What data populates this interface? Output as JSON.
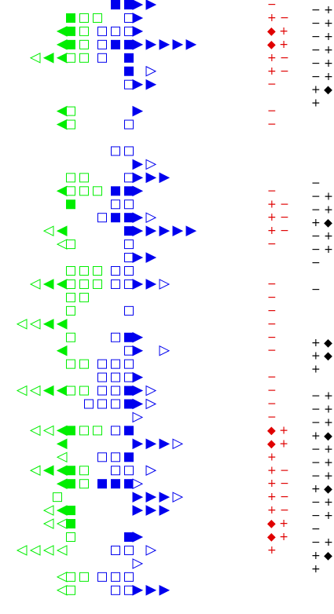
{
  "symbols": [
    ".......BBRR...",
    "....Ggg.bR....",
    "...LGgbbbR....",
    "...LGgbBBRRRRR",
    ".lLLggb.B.....",
    "........B.r...",
    "........bRR...",
    "..............",
    "...Lg....R....",
    "...Lg...b.....",
    "..............",
    ".......bb.....",
    ".........Rr...",
    "....gg..bRRR..",
    "...LgggBBR....",
    "....G..bb.....",
    "......bBBRr...",
    "..lL....BRRRRR",
    "...lg...b.....",
    "........bRR...",
    "....gggbb.....",
    ".lLLgggbbRRr..",
    "....gg........",
    "....g...b.....",
    "llLL..........",
    "....g..bBR....",
    "...L....bR.r..",
    "....ggbbb.....",
    "......bbbR....",
    "llLLggbbBRr...",
    ".....bbbBRr...",
    ".........r....",
    ".llLGggbB.....",
    "...L.....RRRr.",
    "...l..bbB.....",
    ".lLLGg.bb.r...",
    "...LGgBBBr....",
    "...g.....RRRr.",
    "..lLG....RRR..",
    "..llG.........",
    "....g...BR....",
    "llll...bb.r...",
    ".........r....",
    "...lggbbb.....",
    "...lg..bbRRR.."
  ],
  "red_column": [
    "−",
    "+ −",
    "◆ +",
    "◆ +",
    "+ −",
    "+ −",
    "−",
    null,
    "−",
    "−",
    null,
    null,
    null,
    null,
    "−",
    "+ −",
    "+ −",
    "+ −",
    "−",
    null,
    null,
    "−",
    "−",
    "−",
    "−",
    "−",
    "−",
    null,
    "−",
    "−",
    "−",
    "−",
    "◆ +",
    "◆ +",
    "+",
    "+ −",
    "+ −",
    "+ −",
    "+ −",
    "◆ +",
    "◆ +",
    "+",
    null,
    null,
    null
  ],
  "black_column": [
    "− +",
    "− +",
    "− +",
    "− +",
    "− +",
    "− +",
    "+ ◆",
    "+",
    null,
    null,
    null,
    null,
    null,
    "−",
    "− +",
    "− +",
    "+ ◆",
    "− +",
    "− +",
    "−",
    null,
    "−",
    null,
    null,
    null,
    "+ ◆",
    "+ ◆",
    "+",
    null,
    "− +",
    "− +",
    "− +",
    "+ ◆",
    "− +",
    "− +",
    "− +",
    "+ ◆",
    "− +",
    "− +",
    "−",
    "− +",
    "+ ◆",
    "+",
    null,
    null
  ]
}
